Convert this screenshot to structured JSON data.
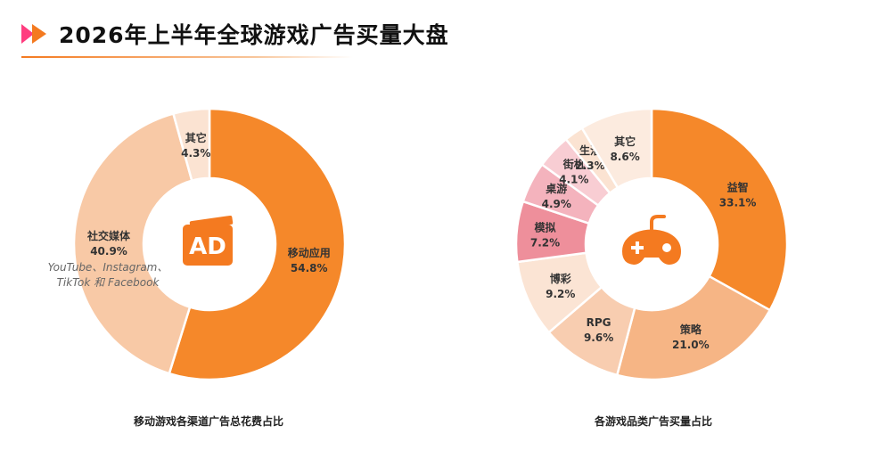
{
  "header": {
    "title": "2026年上半年全球游戏广告买量大盘",
    "logo_colors": [
      "#ff3d7f",
      "#f47a20"
    ]
  },
  "left_chart": {
    "caption": "移动游戏各渠道广告总花费占比",
    "center_icon": "ad-icon",
    "center_icon_text": "AD",
    "center_icon_color": "#f47a20",
    "annotation": "YouTube、Instagram、\nTikTok 和 Facebook"
  },
  "right_chart": {
    "caption": "各游戏品类广告买量占比",
    "center_icon": "gamepad-icon",
    "center_icon_color": "#f47a20"
  },
  "chart_data": [
    {
      "type": "pie",
      "title": "移动游戏各渠道广告总花费占比",
      "categories": [
        "移动应用",
        "社交媒体",
        "其它"
      ],
      "values": [
        54.8,
        40.9,
        4.3
      ],
      "labels": [
        "54.8%",
        "40.9%",
        "4.3%"
      ],
      "colors": [
        "#f5882a",
        "#f8c9a6",
        "#fbe3d2"
      ]
    },
    {
      "type": "pie",
      "title": "各游戏品类广告买量占比",
      "categories": [
        "益智",
        "策略",
        "RPG",
        "博彩",
        "模拟",
        "桌游",
        "街机",
        "生活",
        "其它"
      ],
      "values": [
        33.1,
        21.0,
        9.6,
        9.2,
        7.2,
        4.9,
        4.1,
        2.3,
        8.6
      ],
      "labels": [
        "33.1%",
        "21.0%",
        "9.6%",
        "9.2%",
        "7.2%",
        "4.9%",
        "4.1%",
        "2.3%",
        "8.6%"
      ],
      "colors": [
        "#f5882a",
        "#f6b585",
        "#f8cdb0",
        "#fbe4d4",
        "#ee8f9b",
        "#f4b3bd",
        "#f8cdd3",
        "#fbe3d2",
        "#fcebdf"
      ]
    }
  ]
}
